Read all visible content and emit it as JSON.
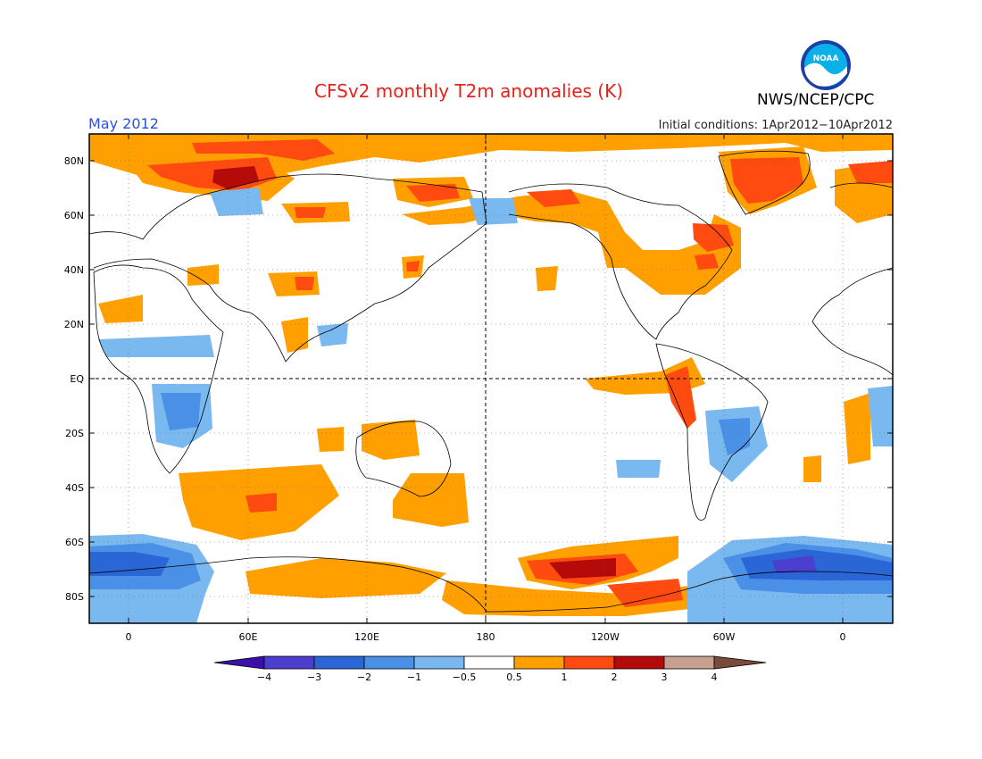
{
  "title": "CFSv2 monthly T2m anomalies (K)",
  "organization": "NWS/NCEP/CPC",
  "logo_text": "NOAA",
  "period": "May 2012",
  "initial_conditions": "Initial conditions: 1Apr2012−10Apr2012",
  "lat_labels": [
    "80N",
    "60N",
    "40N",
    "20N",
    "EQ",
    "20S",
    "40S",
    "60S",
    "80S"
  ],
  "lon_labels": [
    "0",
    "60E",
    "120E",
    "180",
    "120W",
    "60W",
    "0"
  ],
  "colorbar": {
    "labels": [
      "−4",
      "−3",
      "−2",
      "−1",
      "−0.5",
      "0.5",
      "1",
      "2",
      "3",
      "4"
    ],
    "colors": [
      "#3a10a8",
      "#4c3fcf",
      "#2a66d6",
      "#4a90e6",
      "#7ab8f0",
      "#ffffff",
      "#ff9f00",
      "#ff4a10",
      "#b40a0a",
      "#c8a090",
      "#7a4a3a"
    ]
  },
  "colors": {
    "title": "#e8221a",
    "period": "#2b4fe0",
    "orange": "#ff9f00",
    "red": "#ff4a10",
    "darkred": "#b40a0a",
    "lightblue": "#7ab8f0",
    "blue": "#4a90e6",
    "darkblue": "#2a66d6",
    "navy": "#4c3fcf"
  }
}
